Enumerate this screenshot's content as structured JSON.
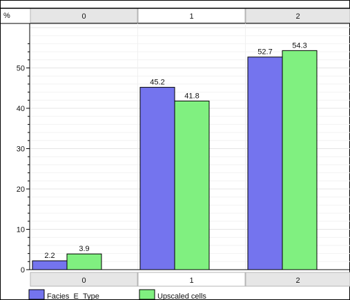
{
  "chart_data": {
    "type": "bar",
    "y_unit_label": "%",
    "categories": [
      "0",
      "1",
      "2"
    ],
    "series": [
      {
        "name": "Facies_E_Type",
        "values": [
          2.2,
          45.2,
          52.7
        ],
        "color": "#7474ee"
      },
      {
        "name": "Upscaled cells",
        "values": [
          3.9,
          41.8,
          54.3
        ],
        "color": "#80f080"
      }
    ],
    "value_labels": [
      [
        "2.2",
        "45.2",
        "52.7"
      ],
      [
        "3.9",
        "41.8",
        "54.3"
      ]
    ],
    "yticks": [
      "0",
      "10",
      "20",
      "30",
      "40",
      "50"
    ],
    "ylim": [
      0,
      60
    ],
    "grid": true,
    "legend_position": "bottom-left",
    "category_band_colors": [
      "#e6e6e6",
      "#ffffff",
      "#e6e6e6"
    ]
  }
}
